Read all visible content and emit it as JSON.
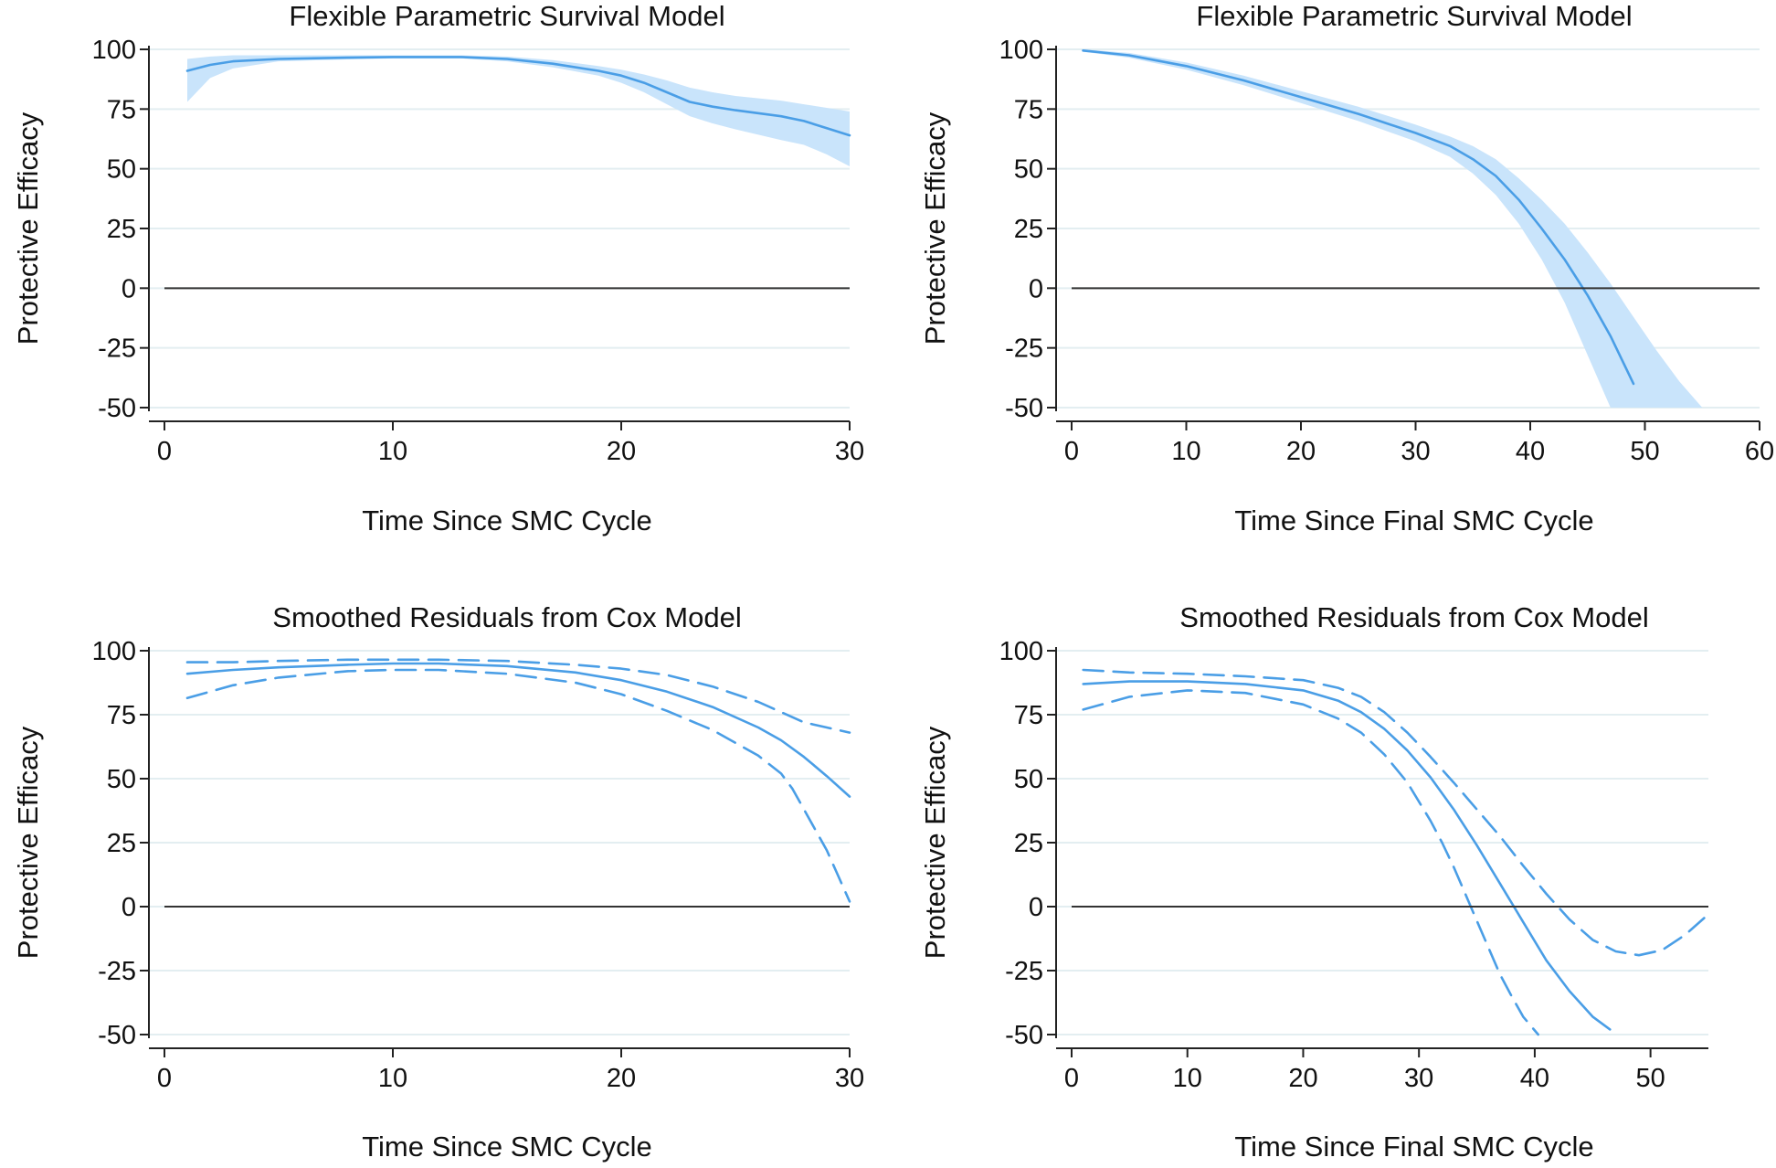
{
  "colors": {
    "line": "#4a9ee6",
    "band": "#c9e4fb",
    "grid": "#e3eef1",
    "zero_line": "#333333",
    "axis": "#222222"
  },
  "chart_data": [
    {
      "type": "line",
      "title": "Flexible Parametric Survival Model",
      "xlabel": "Time Since SMC Cycle",
      "ylabel": "Protective Efficacy",
      "xlim": [
        0,
        30
      ],
      "ylim": [
        -50,
        100
      ],
      "x_ticks": [
        0,
        10,
        20,
        30
      ],
      "y_ticks": [
        100,
        75,
        50,
        25,
        0,
        -25,
        -50
      ],
      "grid": true,
      "reference_line": 0,
      "series": [
        {
          "style": "solid",
          "x": [
            1,
            2,
            3,
            5,
            8,
            10,
            13,
            15,
            17,
            19,
            20,
            21,
            22,
            23,
            24,
            25,
            27,
            28,
            29,
            30
          ],
          "y": [
            91,
            93.5,
            95,
            96,
            96.5,
            96.8,
            96.8,
            96,
            94,
            91,
            89,
            86,
            82,
            78,
            76,
            74.5,
            72,
            70,
            67,
            64
          ]
        },
        {
          "style": "band",
          "x": [
            1,
            2,
            3,
            5,
            8,
            10,
            13,
            15,
            17,
            19,
            20,
            21,
            22,
            23,
            24,
            25,
            27,
            28,
            29,
            30
          ],
          "lower": [
            78,
            88,
            92,
            95,
            95.8,
            96.2,
            96.2,
            95,
            92.5,
            89,
            86,
            82,
            77,
            72,
            69,
            66.5,
            62,
            60,
            56,
            51
          ],
          "upper": [
            96,
            97,
            97.5,
            97.5,
            97.5,
            97.5,
            97.5,
            97,
            95.5,
            93,
            91.5,
            89.5,
            87,
            84,
            82,
            80.5,
            78.5,
            77,
            75.5,
            74
          ]
        }
      ]
    },
    {
      "type": "line",
      "title": "Flexible Parametric Survival Model",
      "xlabel": "Time Since Final SMC Cycle",
      "ylabel": "Protective Efficacy",
      "xlim": [
        0,
        60
      ],
      "ylim": [
        -50,
        100
      ],
      "x_ticks": [
        0,
        10,
        20,
        30,
        40,
        50,
        60
      ],
      "y_ticks": [
        100,
        75,
        50,
        25,
        0,
        -25,
        -50
      ],
      "grid": true,
      "reference_line": 0,
      "series": [
        {
          "style": "solid",
          "x": [
            1,
            5,
            10,
            15,
            20,
            25,
            30,
            33,
            35,
            37,
            39,
            41,
            43,
            45,
            47,
            49
          ],
          "y": [
            99.5,
            97.5,
            93,
            87,
            80,
            73,
            65,
            59.5,
            54,
            47,
            37,
            25,
            12,
            -3,
            -20,
            -40
          ]
        },
        {
          "style": "band",
          "x": [
            1,
            5,
            10,
            15,
            20,
            25,
            30,
            33,
            35,
            37,
            39,
            41,
            43,
            45,
            47,
            49,
            51,
            53,
            55
          ],
          "lower": [
            99,
            96.5,
            91.5,
            85,
            77.5,
            70,
            61.5,
            55,
            48,
            39,
            27,
            12,
            -6,
            -28,
            -50,
            null,
            null,
            null,
            null
          ],
          "upper": [
            100,
            98.5,
            94.5,
            89,
            82.5,
            76,
            68.5,
            63.5,
            59.5,
            54,
            46,
            37,
            27,
            15,
            2,
            -12,
            -26,
            -39,
            -50
          ]
        }
      ]
    },
    {
      "type": "line",
      "title": "Smoothed Residuals from Cox Model",
      "xlabel": "Time Since SMC Cycle",
      "ylabel": "Protective Efficacy",
      "xlim": [
        0,
        30
      ],
      "ylim": [
        -50,
        100
      ],
      "x_ticks": [
        0,
        10,
        20,
        30
      ],
      "y_ticks": [
        100,
        75,
        50,
        25,
        0,
        -25,
        -50
      ],
      "grid": true,
      "reference_line": 0,
      "series": [
        {
          "style": "solid",
          "x": [
            1,
            3,
            5,
            8,
            10,
            12,
            15,
            18,
            20,
            22,
            24,
            26,
            27,
            28,
            29,
            30
          ],
          "y": [
            91,
            92.5,
            93.5,
            94.5,
            95,
            95,
            94,
            91.5,
            88.5,
            84,
            78,
            70,
            65,
            58.5,
            51,
            43
          ]
        },
        {
          "style": "dashed",
          "x": [
            1,
            3,
            5,
            8,
            10,
            12,
            15,
            18,
            20,
            22,
            24,
            26,
            27,
            28,
            29,
            30
          ],
          "y": [
            95.5,
            95.5,
            96,
            96.5,
            96.5,
            96.5,
            96,
            94.5,
            93,
            90.5,
            86,
            80,
            76,
            72,
            70,
            68
          ]
        },
        {
          "style": "dashed",
          "x": [
            1,
            3,
            5,
            8,
            10,
            12,
            15,
            18,
            20,
            22,
            24,
            26,
            27,
            27.5,
            28,
            28.5,
            29,
            29.5,
            30
          ],
          "y": [
            81.5,
            86.5,
            89.5,
            92,
            92.5,
            92.5,
            91,
            87.5,
            83,
            76.5,
            69,
            59,
            52,
            46,
            38,
            30,
            22,
            12,
            2
          ]
        }
      ]
    },
    {
      "type": "line",
      "title": "Smoothed Residuals from Cox Model",
      "xlabel": "Time Since Final SMC Cycle",
      "ylabel": "Protective Efficacy",
      "xlim": [
        0,
        55
      ],
      "ylim": [
        -50,
        100
      ],
      "x_ticks": [
        0,
        10,
        20,
        30,
        40,
        50
      ],
      "y_ticks": [
        100,
        75,
        50,
        25,
        0,
        -25,
        -50
      ],
      "grid": true,
      "reference_line": 0,
      "series": [
        {
          "style": "solid",
          "x": [
            1,
            5,
            10,
            15,
            20,
            23,
            25,
            27,
            29,
            31,
            33,
            35,
            37,
            39,
            41,
            43,
            45,
            46.5
          ],
          "y": [
            87,
            88,
            88,
            87,
            84.5,
            80.5,
            76,
            69.5,
            61,
            50.5,
            38,
            24,
            9,
            -6,
            -21,
            -33,
            -43,
            -48
          ]
        },
        {
          "style": "dashed",
          "x": [
            1,
            5,
            10,
            15,
            20,
            23,
            25,
            27,
            29,
            31,
            33,
            35,
            37,
            39,
            41,
            43,
            45,
            47,
            49,
            51,
            53,
            55
          ],
          "y": [
            92.5,
            91.5,
            91,
            90,
            88.5,
            85.5,
            82,
            76,
            68,
            58.5,
            48.5,
            38,
            27.5,
            16,
            5,
            -5,
            -13,
            -17.5,
            -19,
            -17,
            -11,
            -3
          ]
        },
        {
          "style": "dashed",
          "x": [
            1,
            5,
            10,
            15,
            20,
            23,
            25,
            27,
            29,
            31,
            32,
            33,
            34,
            35,
            36,
            37,
            38,
            39,
            40.3
          ],
          "y": [
            77,
            82,
            84.5,
            83.5,
            79,
            73.5,
            68,
            59.5,
            48.5,
            33.5,
            25,
            15.5,
            5,
            -5.5,
            -16,
            -26.5,
            -35,
            -43,
            -50
          ]
        }
      ]
    }
  ]
}
